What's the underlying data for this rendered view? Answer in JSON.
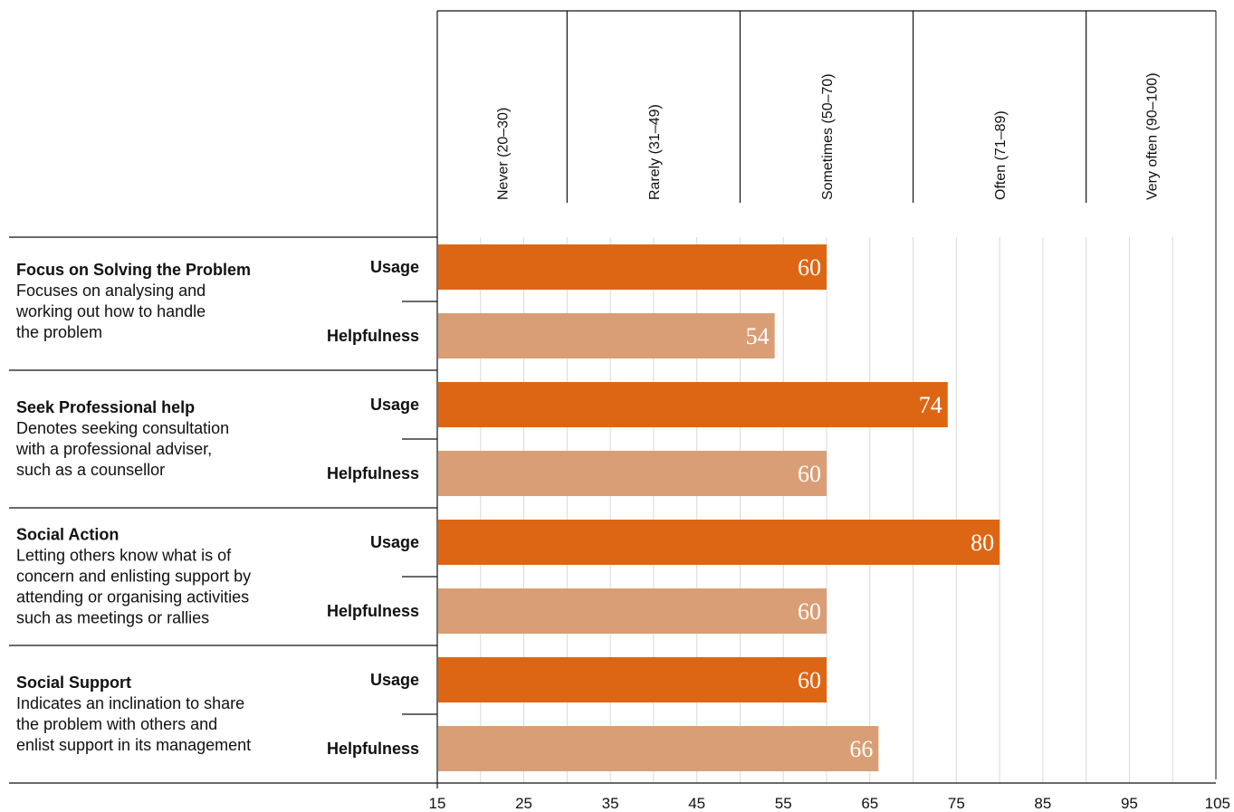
{
  "chart_data": {
    "type": "bar",
    "orientation": "horizontal",
    "bands": [
      {
        "label": "Never (20–30)",
        "from": 15,
        "to": 30
      },
      {
        "label": "Rarely (31–49)",
        "from": 30,
        "to": 50
      },
      {
        "label": "Sometimes (50–70)",
        "from": 50,
        "to": 70
      },
      {
        "label": "Often (71–89)",
        "from": 70,
        "to": 90
      },
      {
        "label": "Very often (90–100)",
        "from": 90,
        "to": 105
      }
    ],
    "categories": [
      {
        "title": "Focus on Solving the Problem",
        "description": [
          "Focuses on analysing and",
          "working out how to handle",
          "the problem"
        ],
        "bars": [
          {
            "label": "Usage",
            "value": 60
          },
          {
            "label": "Helpfulness",
            "value": 54
          }
        ]
      },
      {
        "title": "Seek Professional help",
        "description": [
          "Denotes seeking consultation",
          "with a professional adviser,",
          "such as a counsellor"
        ],
        "bars": [
          {
            "label": "Usage",
            "value": 74
          },
          {
            "label": "Helpfulness",
            "value": 60
          }
        ]
      },
      {
        "title": "Social Action",
        "description": [
          "Letting others know what is of",
          "concern and enlisting support by",
          "attending or organising activities",
          "such as meetings or rallies"
        ],
        "bars": [
          {
            "label": "Usage",
            "value": 80
          },
          {
            "label": "Helpfulness",
            "value": 60
          }
        ]
      },
      {
        "title": "Social Support",
        "description": [
          "Indicates an inclination to share",
          "the problem with others and",
          "enlist support in its management"
        ],
        "bars": [
          {
            "label": "Usage",
            "value": 60
          },
          {
            "label": "Helpfulness",
            "value": 66
          }
        ]
      }
    ],
    "xlim": [
      15,
      105
    ],
    "xticks": [
      "15",
      "25",
      "35",
      "45",
      "55",
      "65",
      "75",
      "85",
      "95",
      "105"
    ],
    "grid": true,
    "colors": {
      "usage": "#dd6614",
      "helpfulness": "#d99e75",
      "grid": "#d9d9d9",
      "axis": "#111111"
    }
  }
}
